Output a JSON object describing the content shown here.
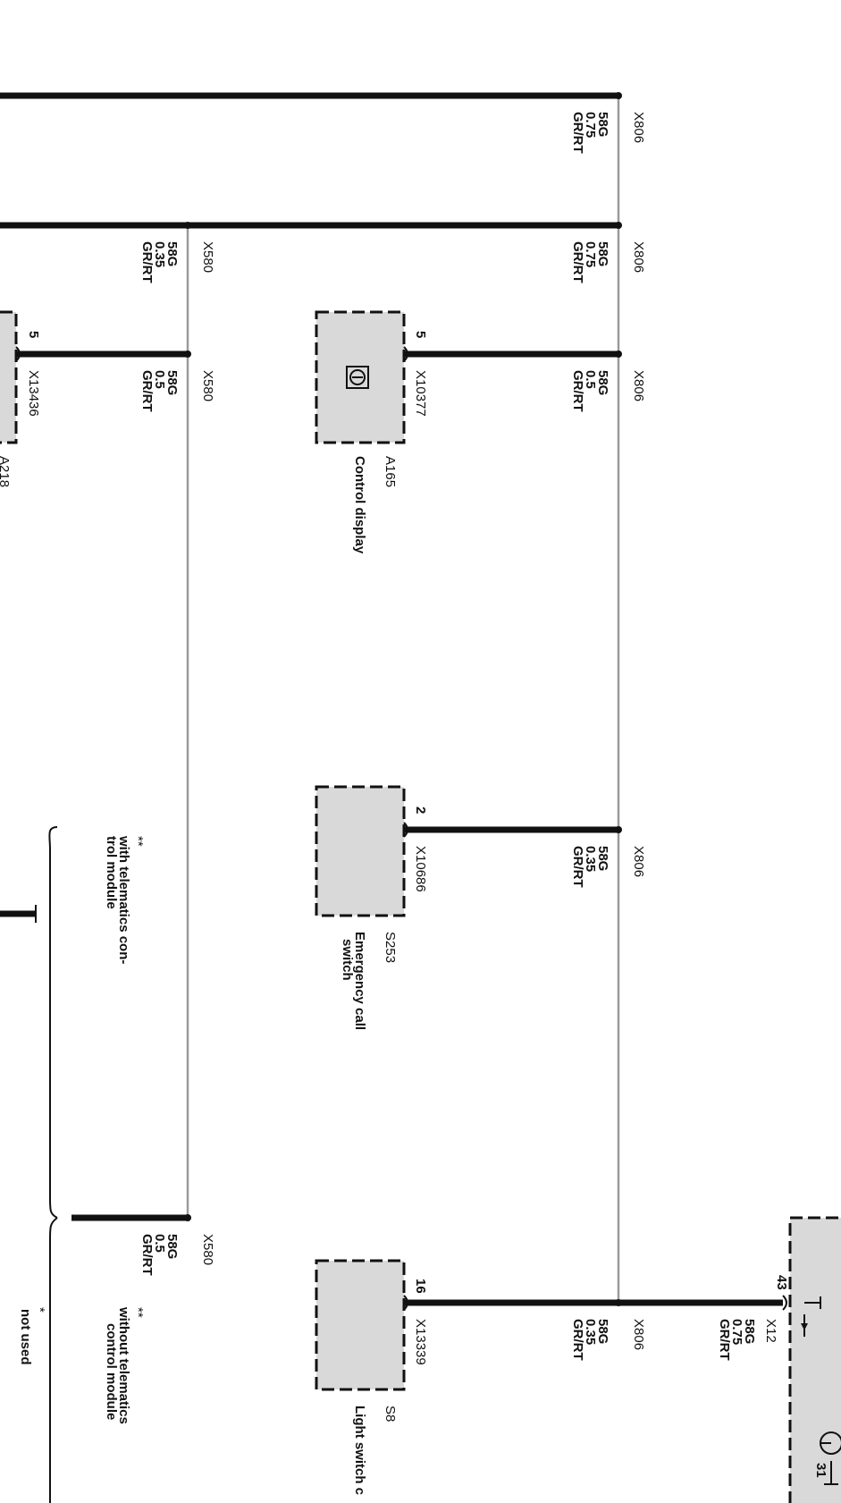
{
  "bus_labels": {
    "x806": "X806",
    "x580": "X580"
  },
  "wire_labels": [
    {
      "id": "w1",
      "code": "58G",
      "size": "0.75",
      "color": "GR/RT"
    },
    {
      "id": "w2",
      "code": "58G",
      "size": "0.75",
      "color": "GR/RT"
    },
    {
      "id": "w3",
      "code": "58G",
      "size": "0.35",
      "color": "GR/RT"
    },
    {
      "id": "w4",
      "code": "58G",
      "size": "0.5",
      "color": "GR/RT"
    },
    {
      "id": "w5",
      "code": "58G",
      "size": "0.5",
      "color": "GR/RT"
    },
    {
      "id": "w6",
      "code": "58G",
      "size": "0.35",
      "color": "GR/RT"
    },
    {
      "id": "w7",
      "code": "58G",
      "size": "0.5",
      "color": "GR/RT"
    },
    {
      "id": "w8",
      "code": "58G",
      "size": "0.35",
      "color": "GR/RT"
    },
    {
      "id": "w9",
      "code": "58G",
      "size": "0.75",
      "color": "GR/RT"
    }
  ],
  "components": {
    "a165": {
      "id": "A165",
      "name": "Control display",
      "connector": "X10377",
      "pin": "5"
    },
    "s253": {
      "id": "S253",
      "name_line1": "Emergency call",
      "name_line2": "switch",
      "connector": "X10686",
      "pin": "2"
    },
    "s8": {
      "id": "S8",
      "name": "Light switch c",
      "connector": "X13339",
      "pin": "16"
    },
    "a218": {
      "id": "A218",
      "connector": "X13436",
      "pin": "5"
    },
    "x12": {
      "connector": "X12",
      "pin": "43",
      "ground": "31"
    }
  },
  "notes": {
    "with_telematics_marker": "**",
    "with_telematics_line1": "with telematics con-",
    "with_telematics_line2": "trol module",
    "without_telematics_marker": "**",
    "without_telematics_line1": "without telematics",
    "without_telematics_line2": "control module",
    "not_used_marker": "*",
    "not_used": "not used"
  }
}
